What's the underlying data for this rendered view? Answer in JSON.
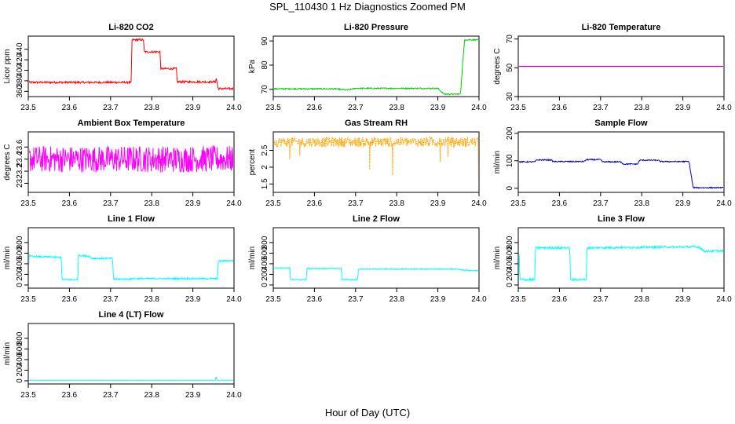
{
  "page": {
    "title": "SPL_110430  1 Hz Diagnostics Zoomed PM",
    "xlabel_common": "Hour of Day (UTC)"
  },
  "chart_data": [
    {
      "id": "co2",
      "type": "line",
      "title": "Li-820 CO2",
      "ylabel": "Licor ppm",
      "color": "#ff0000",
      "xlim": [
        23.5,
        24.0
      ],
      "ylim": [
        350,
        465
      ],
      "xticks": [
        "23.5",
        "23.6",
        "23.7",
        "23.8",
        "23.9",
        "24.0"
      ],
      "yticks": [
        360,
        380,
        400,
        420,
        440
      ],
      "series": [
        {
          "name": "CO2",
          "noise": 2,
          "x": [
            23.5,
            23.75,
            23.752,
            23.78,
            23.782,
            23.82,
            23.822,
            23.86,
            23.862,
            23.955,
            23.957,
            23.961,
            23.963,
            24.0
          ],
          "y": [
            377,
            377,
            458,
            458,
            435,
            435,
            403,
            403,
            378,
            378,
            385,
            367,
            365,
            365
          ]
        }
      ]
    },
    {
      "id": "pressure",
      "type": "line",
      "title": "Li-820 Pressure",
      "ylabel": "kPa",
      "color": "#00cc00",
      "xlim": [
        23.5,
        24.0
      ],
      "ylim": [
        67,
        92
      ],
      "xticks": [
        "23.5",
        "23.6",
        "23.7",
        "23.8",
        "23.9",
        "24.0"
      ],
      "yticks": [
        70,
        80,
        90
      ],
      "series": [
        {
          "name": "Pressure",
          "noise": 0.25,
          "x": [
            23.5,
            23.65,
            23.68,
            23.7,
            23.75,
            23.9,
            23.915,
            23.955,
            23.96,
            23.965,
            24.0
          ],
          "y": [
            70.2,
            70.2,
            69.7,
            70.4,
            70.4,
            70.4,
            68,
            68,
            80,
            90.5,
            90.5
          ]
        }
      ]
    },
    {
      "id": "temp",
      "type": "line",
      "title": "Li-820 Temperature",
      "ylabel": "degrees C",
      "color": "#cc00cc",
      "xlim": [
        23.5,
        24.0
      ],
      "ylim": [
        30,
        72
      ],
      "xticks": [
        "23.5",
        "23.6",
        "23.7",
        "23.8",
        "23.9",
        "24.0"
      ],
      "yticks": [
        30,
        50,
        70
      ],
      "series": [
        {
          "name": "Temperature",
          "noise": 0,
          "x": [
            23.5,
            24.0
          ],
          "y": [
            51,
            51
          ]
        }
      ]
    },
    {
      "id": "ambient",
      "type": "line",
      "title": "Ambient Box Temperature",
      "ylabel": "degrees C",
      "color": "#ff00ff",
      "xlim": [
        23.5,
        24.0
      ],
      "ylim": [
        22.85,
        23.85
      ],
      "xticks": [
        "23.5",
        "23.6",
        "23.7",
        "23.8",
        "23.9",
        "24.0"
      ],
      "yticks": [
        23.0,
        23.2,
        23.4,
        23.6
      ],
      "series": [
        {
          "name": "Ambient",
          "noise": 0.22,
          "x": [
            23.5,
            24.0
          ],
          "y": [
            23.4,
            23.4
          ]
        }
      ]
    },
    {
      "id": "rh",
      "type": "line",
      "title": "Gas Stream RH",
      "ylabel": "percent",
      "color": "#ffa500",
      "xlim": [
        23.5,
        24.0
      ],
      "ylim": [
        1.25,
        3.05
      ],
      "xticks": [
        "23.5",
        "23.6",
        "23.7",
        "23.8",
        "23.9",
        "24.0"
      ],
      "yticks": [
        1.5,
        2.0,
        2.5
      ],
      "series": [
        {
          "name": "RH",
          "noise": 0.15,
          "dips": true,
          "x": [
            23.5,
            24.0
          ],
          "y": [
            2.75,
            2.75
          ]
        }
      ]
    },
    {
      "id": "sample",
      "type": "line",
      "title": "Sample Flow",
      "ylabel": "ml/min",
      "color": "#0000cc",
      "xlim": [
        23.5,
        24.0
      ],
      "ylim": [
        -15,
        205
      ],
      "xticks": [
        "23.5",
        "23.6",
        "23.7",
        "23.8",
        "23.9",
        "24.0"
      ],
      "yticks": [
        0,
        100,
        200
      ],
      "series": [
        {
          "name": "Sample Flow",
          "noise": 2,
          "x": [
            23.5,
            23.54,
            23.545,
            23.58,
            23.585,
            23.66,
            23.665,
            23.7,
            23.705,
            23.75,
            23.755,
            23.79,
            23.795,
            23.84,
            23.845,
            23.915,
            23.925,
            24.0
          ],
          "y": [
            96,
            96,
            103,
            103,
            97,
            97,
            104,
            104,
            96,
            96,
            88,
            88,
            102,
            102,
            97,
            97,
            2,
            2
          ]
        }
      ]
    },
    {
      "id": "line1",
      "type": "line",
      "title": "Line 1 Flow",
      "ylabel": "ml/min",
      "color": "#00ffff",
      "xlim": [
        23.5,
        24.0
      ],
      "ylim": [
        -60,
        1080
      ],
      "xticks": [
        "23.5",
        "23.6",
        "23.7",
        "23.8",
        "23.9",
        "24.0"
      ],
      "yticks": [
        0,
        200,
        400,
        600,
        800
      ],
      "series": [
        {
          "name": "Line 1",
          "noise": 15,
          "x": [
            23.5,
            23.502,
            23.504,
            23.58,
            23.582,
            23.62,
            23.622,
            23.65,
            23.652,
            23.705,
            23.707,
            23.75,
            23.752,
            23.96,
            23.962,
            24.0
          ],
          "y": [
            120,
            580,
            540,
            520,
            100,
            100,
            560,
            540,
            500,
            500,
            110,
            110,
            120,
            120,
            450,
            460
          ]
        }
      ]
    },
    {
      "id": "line2",
      "type": "line",
      "title": "Line 2 Flow",
      "ylabel": "ml/min",
      "color": "#00ffff",
      "xlim": [
        23.5,
        24.0
      ],
      "ylim": [
        -60,
        1080
      ],
      "xticks": [
        "23.5",
        "23.6",
        "23.7",
        "23.8",
        "23.9",
        "24.0"
      ],
      "yticks": [
        0,
        200,
        400,
        600,
        800
      ],
      "series": [
        {
          "name": "Line 2",
          "noise": 10,
          "x": [
            23.5,
            23.54,
            23.542,
            23.58,
            23.582,
            23.665,
            23.667,
            23.705,
            23.707,
            23.94,
            23.98,
            24.0
          ],
          "y": [
            320,
            320,
            100,
            100,
            310,
            310,
            100,
            100,
            300,
            300,
            270,
            270
          ]
        }
      ]
    },
    {
      "id": "line3",
      "type": "line",
      "title": "Line 3 Flow",
      "ylabel": "ml/min",
      "color": "#00ffff",
      "xlim": [
        23.5,
        24.0
      ],
      "ylim": [
        -60,
        1080
      ],
      "xticks": [
        "23.5",
        "23.6",
        "23.7",
        "23.8",
        "23.9",
        "24.0"
      ],
      "yticks": [
        0,
        200,
        400,
        600,
        800
      ],
      "series": [
        {
          "name": "Line 3",
          "noise": 20,
          "x": [
            23.5,
            23.502,
            23.504,
            23.54,
            23.542,
            23.625,
            23.627,
            23.665,
            23.667,
            23.94,
            23.95,
            24.0
          ],
          "y": [
            100,
            620,
            100,
            100,
            700,
            700,
            100,
            100,
            700,
            720,
            640,
            640
          ]
        }
      ]
    },
    {
      "id": "line4",
      "type": "line",
      "title": "Line 4 (LT) Flow",
      "ylabel": "ml/min",
      "color": "#00ffff",
      "xlim": [
        23.5,
        24.0
      ],
      "ylim": [
        -60,
        1080
      ],
      "xticks": [
        "23.5",
        "23.6",
        "23.7",
        "23.8",
        "23.9",
        "24.0"
      ],
      "yticks": [
        0,
        200,
        400,
        600,
        800
      ],
      "series": [
        {
          "name": "Line 4",
          "noise": 2,
          "x": [
            23.5,
            23.955,
            23.956,
            23.958,
            23.96,
            24.0
          ],
          "y": [
            10,
            10,
            90,
            20,
            10,
            10
          ]
        }
      ]
    }
  ]
}
